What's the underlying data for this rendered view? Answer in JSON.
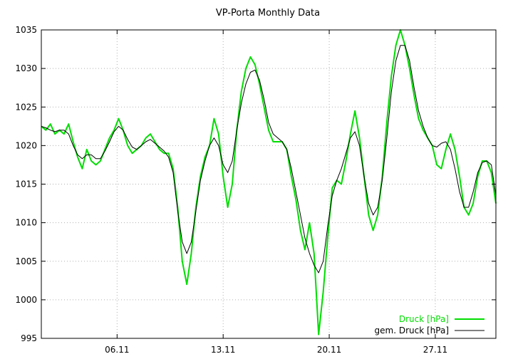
{
  "chart_data": {
    "type": "line",
    "title": "VP-Porta Monthly Data",
    "xlabel": "",
    "ylabel": "",
    "ylim": [
      995,
      1035
    ],
    "xlim": [
      1,
      31
    ],
    "x_tick_values": [
      6,
      13,
      20,
      27
    ],
    "x_tick_labels": [
      "06.11",
      "13.11",
      "20.11",
      "27.11"
    ],
    "y_tick_values": [
      995,
      1000,
      1005,
      1010,
      1015,
      1020,
      1025,
      1030,
      1035
    ],
    "grid": true,
    "legend_position": "bottom-right",
    "series": [
      {
        "name": "Druck [hPa]",
        "color": "#00dd00",
        "x": [
          1.0,
          1.3,
          1.6,
          1.9,
          2.2,
          2.5,
          2.8,
          3.1,
          3.4,
          3.7,
          4.0,
          4.3,
          4.6,
          4.9,
          5.2,
          5.5,
          5.8,
          6.1,
          6.4,
          6.7,
          7.0,
          7.3,
          7.6,
          7.9,
          8.2,
          8.5,
          8.8,
          9.1,
          9.4,
          9.7,
          10.0,
          10.3,
          10.6,
          10.9,
          11.2,
          11.5,
          11.8,
          12.1,
          12.4,
          12.7,
          13.0,
          13.3,
          13.6,
          13.9,
          14.2,
          14.5,
          14.8,
          15.1,
          15.4,
          15.7,
          16.0,
          16.3,
          16.6,
          16.9,
          17.2,
          17.5,
          17.8,
          18.1,
          18.4,
          18.7,
          19.0,
          19.3,
          19.6,
          19.9,
          20.2,
          20.5,
          20.8,
          21.1,
          21.4,
          21.7,
          22.0,
          22.3,
          22.6,
          22.9,
          23.2,
          23.5,
          23.8,
          24.1,
          24.4,
          24.7,
          25.0,
          25.3,
          25.6,
          25.9,
          26.2,
          26.5,
          26.8,
          27.1,
          27.4,
          27.7,
          28.0,
          28.3,
          28.6,
          28.9,
          29.2,
          29.5,
          29.8,
          30.1,
          30.4,
          30.7,
          31.0
        ],
        "values": [
          1022.5,
          1022.0,
          1022.8,
          1021.5,
          1022.0,
          1021.5,
          1022.8,
          1020.5,
          1018.5,
          1017.0,
          1019.5,
          1018.0,
          1017.5,
          1018.0,
          1019.5,
          1021.0,
          1022.0,
          1023.5,
          1022.0,
          1020.0,
          1019.0,
          1019.5,
          1020.0,
          1021.0,
          1021.5,
          1020.5,
          1019.5,
          1019.0,
          1019.0,
          1017.0,
          1012.0,
          1005.0,
          1002.0,
          1006.0,
          1012.0,
          1016.0,
          1018.5,
          1020.0,
          1023.5,
          1021.5,
          1016.0,
          1012.0,
          1015.0,
          1022.0,
          1027.0,
          1030.0,
          1031.5,
          1030.5,
          1028.0,
          1025.0,
          1022.0,
          1020.5,
          1020.5,
          1020.5,
          1019.5,
          1016.0,
          1013.0,
          1009.0,
          1006.5,
          1010.0,
          1006.0,
          995.5,
          1001.0,
          1008.0,
          1014.5,
          1015.5,
          1015.0,
          1018.0,
          1021.5,
          1024.5,
          1021.0,
          1016.0,
          1011.0,
          1009.0,
          1011.0,
          1016.0,
          1023.0,
          1029.0,
          1033.0,
          1035.0,
          1033.0,
          1030.0,
          1026.5,
          1023.5,
          1022.0,
          1021.0,
          1020.0,
          1017.5,
          1017.0,
          1019.5,
          1021.5,
          1019.5,
          1016.0,
          1012.0,
          1011.0,
          1012.5,
          1016.0,
          1018.0,
          1018.0,
          1016.5,
          1012.5
        ]
      },
      {
        "name": "gem. Druck [hPa]",
        "color": "#000000",
        "x": [
          1.0,
          1.3,
          1.6,
          1.9,
          2.2,
          2.5,
          2.8,
          3.1,
          3.4,
          3.7,
          4.0,
          4.3,
          4.6,
          4.9,
          5.2,
          5.5,
          5.8,
          6.1,
          6.4,
          6.7,
          7.0,
          7.3,
          7.6,
          7.9,
          8.2,
          8.5,
          8.8,
          9.1,
          9.4,
          9.7,
          10.0,
          10.3,
          10.6,
          10.9,
          11.2,
          11.5,
          11.8,
          12.1,
          12.4,
          12.7,
          13.0,
          13.3,
          13.6,
          13.9,
          14.2,
          14.5,
          14.8,
          15.1,
          15.4,
          15.7,
          16.0,
          16.3,
          16.6,
          16.9,
          17.2,
          17.5,
          17.8,
          18.1,
          18.4,
          18.7,
          19.0,
          19.3,
          19.6,
          19.9,
          20.2,
          20.5,
          20.8,
          21.1,
          21.4,
          21.7,
          22.0,
          22.3,
          22.6,
          22.9,
          23.2,
          23.5,
          23.8,
          24.1,
          24.4,
          24.7,
          25.0,
          25.3,
          25.6,
          25.9,
          26.2,
          26.5,
          26.8,
          27.1,
          27.4,
          27.7,
          28.0,
          28.3,
          28.6,
          28.9,
          29.2,
          29.5,
          29.8,
          30.1,
          30.4,
          30.7,
          31.0
        ],
        "values": [
          1022.5,
          1022.3,
          1022.0,
          1021.8,
          1022.0,
          1022.0,
          1021.5,
          1020.0,
          1018.8,
          1018.3,
          1018.8,
          1018.8,
          1018.3,
          1018.3,
          1019.3,
          1020.5,
          1021.8,
          1022.5,
          1022.0,
          1020.8,
          1019.8,
          1019.5,
          1020.0,
          1020.5,
          1020.8,
          1020.3,
          1019.8,
          1019.3,
          1018.5,
          1016.5,
          1011.5,
          1007.5,
          1006.0,
          1007.5,
          1011.5,
          1015.5,
          1018.0,
          1020.0,
          1021.0,
          1020.0,
          1017.5,
          1016.5,
          1018.0,
          1022.0,
          1025.5,
          1028.0,
          1029.5,
          1029.8,
          1028.5,
          1026.0,
          1023.0,
          1021.5,
          1021.0,
          1020.5,
          1019.5,
          1017.0,
          1014.0,
          1011.0,
          1008.0,
          1006.0,
          1004.5,
          1003.5,
          1005.0,
          1009.5,
          1013.5,
          1015.5,
          1017.0,
          1019.0,
          1021.0,
          1021.8,
          1020.0,
          1016.0,
          1012.5,
          1011.0,
          1012.0,
          1015.5,
          1021.0,
          1027.0,
          1031.0,
          1033.0,
          1033.0,
          1031.0,
          1027.5,
          1024.5,
          1022.5,
          1021.0,
          1020.0,
          1019.8,
          1020.3,
          1020.5,
          1019.5,
          1017.0,
          1014.0,
          1012.0,
          1012.0,
          1014.0,
          1016.5,
          1017.8,
          1018.0,
          1017.5,
          1013.5
        ]
      }
    ]
  }
}
